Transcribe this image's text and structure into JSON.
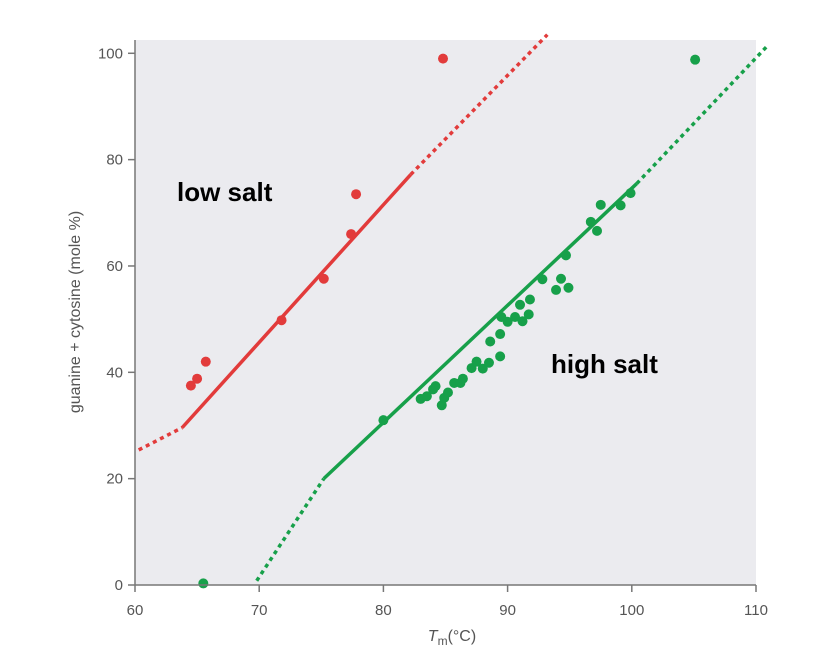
{
  "chart_data": {
    "type": "scatter",
    "xlabel": "T",
    "xlabel_sub": "m",
    "xlabel_unit": "(°C)",
    "ylabel": "guanine + cytosine (mole %)",
    "xlim": [
      60,
      110
    ],
    "ylim": [
      0,
      100
    ],
    "x_ticks": [
      60,
      70,
      80,
      90,
      100,
      110
    ],
    "y_ticks": [
      0,
      20,
      40,
      60,
      80,
      100
    ],
    "x_tick_labels": [
      "60",
      "70",
      "80",
      "90",
      "100",
      "110"
    ],
    "y_tick_labels": [
      "0",
      "20",
      "40",
      "60",
      "80",
      "100"
    ],
    "plot_background": "#ebebef",
    "grid": false,
    "series": [
      {
        "name": "low salt",
        "color": "#e23b3b",
        "points": [
          [
            64.5,
            37.5
          ],
          [
            65.0,
            38.8
          ],
          [
            65.7,
            42.0
          ],
          [
            71.8,
            49.8
          ],
          [
            75.2,
            57.6
          ],
          [
            77.4,
            66.0
          ],
          [
            77.8,
            73.5
          ],
          [
            84.8,
            99.0
          ]
        ],
        "fit_solid": [
          [
            63.8,
            29.6
          ],
          [
            82.2,
            77.2
          ]
        ],
        "fit_dotted": [
          [
            [
              60.3,
              25.4
            ],
            [
              63.8,
              29.6
            ]
          ],
          [
            [
              82.2,
              77.2
            ],
            [
              93.2,
              103.5
            ]
          ]
        ]
      },
      {
        "name": "high salt",
        "color": "#17a04a",
        "points": [
          [
            65.5,
            0.3
          ],
          [
            80.0,
            31.0
          ],
          [
            83.0,
            35.0
          ],
          [
            83.5,
            35.5
          ],
          [
            84.0,
            36.8
          ],
          [
            84.2,
            37.4
          ],
          [
            84.7,
            33.8
          ],
          [
            84.9,
            35.2
          ],
          [
            85.2,
            36.2
          ],
          [
            85.7,
            38.0
          ],
          [
            86.2,
            38.0
          ],
          [
            86.4,
            38.8
          ],
          [
            87.1,
            40.8
          ],
          [
            87.5,
            42.0
          ],
          [
            88.0,
            40.7
          ],
          [
            88.5,
            41.8
          ],
          [
            88.6,
            45.8
          ],
          [
            89.4,
            43.0
          ],
          [
            89.4,
            47.2
          ],
          [
            89.5,
            50.4
          ],
          [
            90.0,
            49.5
          ],
          [
            90.6,
            50.4
          ],
          [
            91.0,
            52.7
          ],
          [
            91.2,
            49.6
          ],
          [
            91.7,
            50.9
          ],
          [
            91.8,
            53.7
          ],
          [
            92.8,
            57.5
          ],
          [
            93.9,
            55.5
          ],
          [
            94.3,
            57.6
          ],
          [
            94.7,
            62.0
          ],
          [
            94.9,
            55.9
          ],
          [
            96.7,
            68.3
          ],
          [
            97.2,
            66.6
          ],
          [
            97.5,
            71.5
          ],
          [
            99.1,
            71.4
          ],
          [
            99.9,
            73.7
          ],
          [
            105.1,
            98.8
          ]
        ],
        "fit_solid": [
          [
            75.2,
            20.0
          ],
          [
            100.4,
            75.5
          ]
        ],
        "fit_dotted": [
          [
            [
              69.8,
              0.8
            ],
            [
              75.2,
              20.0
            ]
          ],
          [
            [
              100.4,
              75.5
            ],
            [
              111.0,
              101.6
            ]
          ]
        ]
      }
    ]
  }
}
